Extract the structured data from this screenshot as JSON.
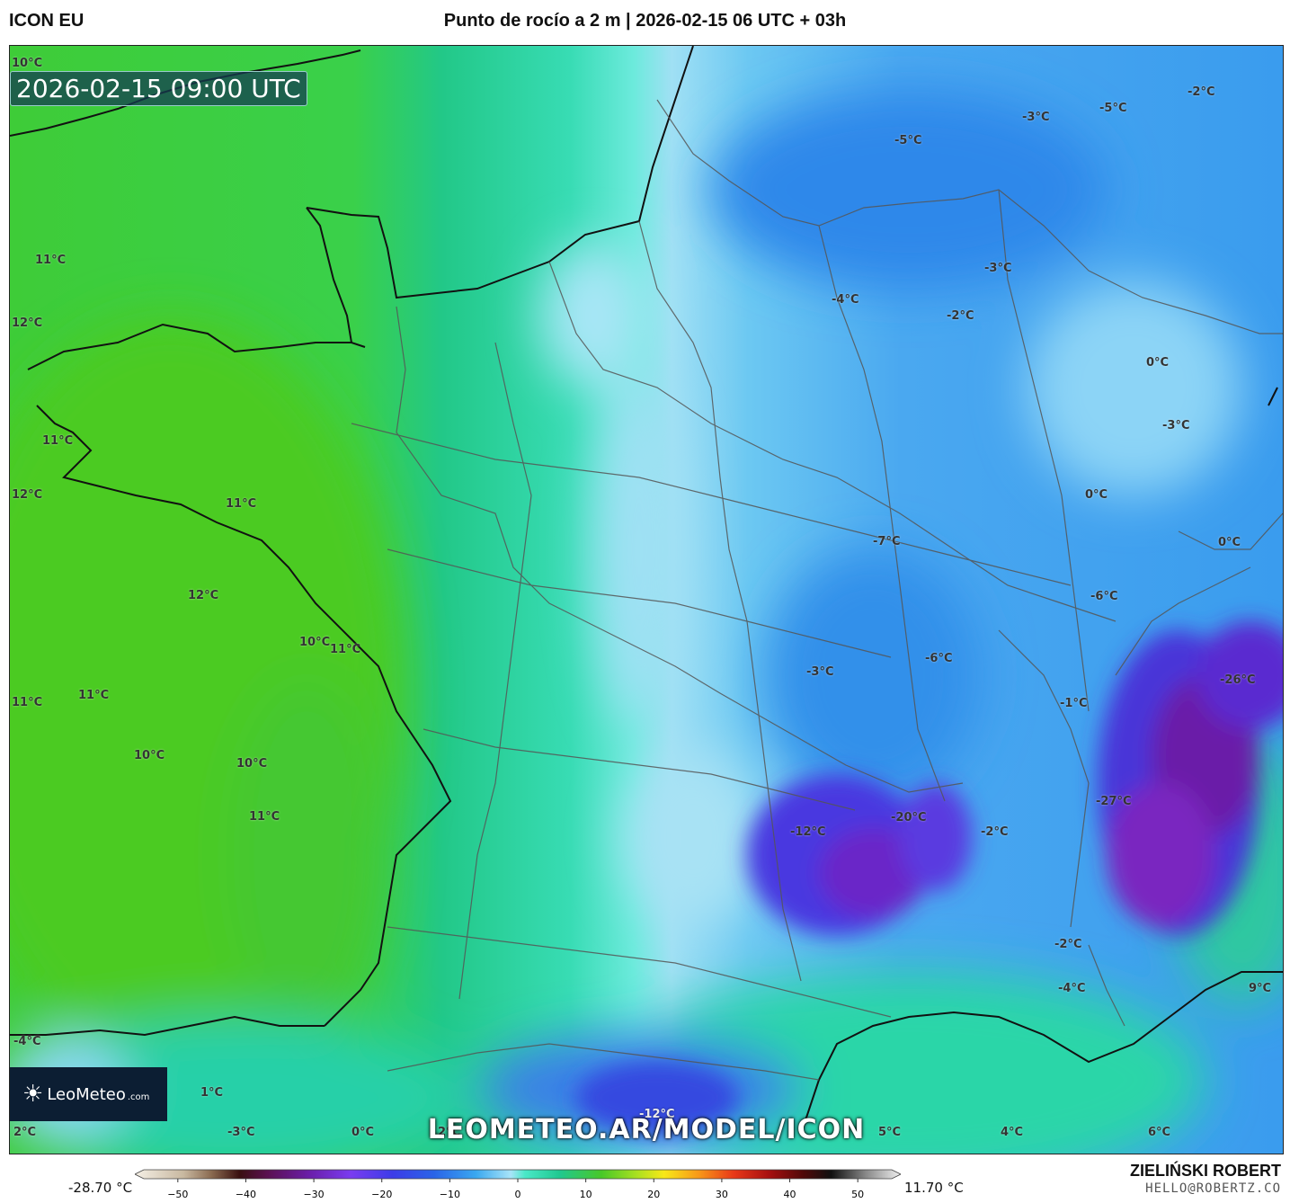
{
  "header": {
    "model": "ICON EU",
    "title": "Punto de rocío a 2 m | 2026-02-15 06 UTC + 03h"
  },
  "map": {
    "valid_time": "2026-02-15 09:00 UTC",
    "watermark": "LEOMETEO.AR/MODEL/ICON",
    "logo": {
      "name": "LeoMeteo",
      "suffix": ".com"
    },
    "labels": [
      {
        "text": "10°C",
        "tone": "dark"
      },
      {
        "text": "11°C",
        "tone": "dark"
      },
      {
        "text": "12°C",
        "tone": "dark"
      },
      {
        "text": "11°C",
        "tone": "dark"
      },
      {
        "text": "12°C",
        "tone": "dark"
      },
      {
        "text": "11°C",
        "tone": "dark"
      },
      {
        "text": "12°C",
        "tone": "dark"
      },
      {
        "text": "10°C",
        "tone": "dark"
      },
      {
        "text": "11°C",
        "tone": "dark"
      },
      {
        "text": "11°C",
        "tone": "dark"
      },
      {
        "text": "11°C",
        "tone": "dark"
      },
      {
        "text": "10°C",
        "tone": "dark"
      },
      {
        "text": "10°C",
        "tone": "dark"
      },
      {
        "text": "11°C",
        "tone": "dark"
      },
      {
        "text": "-2°C",
        "tone": "dark"
      },
      {
        "text": "-5°C",
        "tone": "dark"
      },
      {
        "text": "-3°C",
        "tone": "dark"
      },
      {
        "text": "-5°C",
        "tone": "dark"
      },
      {
        "text": "-3°C",
        "tone": "dark"
      },
      {
        "text": "-4°C",
        "tone": "dark"
      },
      {
        "text": "-2°C",
        "tone": "dark"
      },
      {
        "text": "0°C",
        "tone": "dark"
      },
      {
        "text": "-3°C",
        "tone": "dark"
      },
      {
        "text": "0°C",
        "tone": "dark"
      },
      {
        "text": "-7°C",
        "tone": "dark"
      },
      {
        "text": "0°C",
        "tone": "dark"
      },
      {
        "text": "-6°C",
        "tone": "dark"
      },
      {
        "text": "-3°C",
        "tone": "dark"
      },
      {
        "text": "-6°C",
        "tone": "dark"
      },
      {
        "text": "-1°C",
        "tone": "dark"
      },
      {
        "text": "-26°C",
        "tone": "dark"
      },
      {
        "text": "-27°C",
        "tone": "dark"
      },
      {
        "text": "-12°C",
        "tone": "dark"
      },
      {
        "text": "-20°C",
        "tone": "dark"
      },
      {
        "text": "-2°C",
        "tone": "dark"
      },
      {
        "text": "-2°C",
        "tone": "dark"
      },
      {
        "text": "-4°C",
        "tone": "dark"
      },
      {
        "text": "9°C",
        "tone": "dark"
      },
      {
        "text": "-4°C",
        "tone": "dark"
      },
      {
        "text": "1°C",
        "tone": "dark"
      },
      {
        "text": "2°C",
        "tone": "dark"
      },
      {
        "text": "-3°C",
        "tone": "dark"
      },
      {
        "text": "0°C",
        "tone": "dark"
      },
      {
        "text": "2°C",
        "tone": "dark"
      },
      {
        "text": "-12°C",
        "tone": "light"
      },
      {
        "text": "5°C",
        "tone": "dark"
      },
      {
        "text": "4°C",
        "tone": "dark"
      },
      {
        "text": "6°C",
        "tone": "dark"
      }
    ]
  },
  "legend": {
    "min_label": "-28.70 °C",
    "max_label": "11.70 °C",
    "ticks": [
      "−50",
      "−40",
      "−30",
      "−20",
      "−10",
      "0",
      "10",
      "20",
      "30",
      "40",
      "50"
    ],
    "tick_values": [
      -50,
      -40,
      -30,
      -20,
      -10,
      0,
      10,
      20,
      30,
      40,
      50
    ],
    "range": [
      -55,
      55
    ],
    "stops": [
      {
        "v": -55,
        "c": "#f5f0e6"
      },
      {
        "v": -48,
        "c": "#c8b8a0"
      },
      {
        "v": -44,
        "c": "#8a6a50"
      },
      {
        "v": -40,
        "c": "#3a1010"
      },
      {
        "v": -36,
        "c": "#5a1050"
      },
      {
        "v": -30,
        "c": "#6a1ea8"
      },
      {
        "v": -24,
        "c": "#7a3cf0"
      },
      {
        "v": -18,
        "c": "#3c3ce8"
      },
      {
        "v": -12,
        "c": "#2a64e8"
      },
      {
        "v": -6,
        "c": "#3aa8f0"
      },
      {
        "v": -1,
        "c": "#a8e4f8"
      },
      {
        "v": 1,
        "c": "#4ae8c8"
      },
      {
        "v": 6,
        "c": "#20c890"
      },
      {
        "v": 12,
        "c": "#48c828"
      },
      {
        "v": 17,
        "c": "#a8e020"
      },
      {
        "v": 21,
        "c": "#f8e818"
      },
      {
        "v": 26,
        "c": "#f89818"
      },
      {
        "v": 31,
        "c": "#e83818"
      },
      {
        "v": 36,
        "c": "#a81010"
      },
      {
        "v": 41,
        "c": "#500808"
      },
      {
        "v": 45,
        "c": "#101010"
      },
      {
        "v": 50,
        "c": "#888888"
      },
      {
        "v": 55,
        "c": "#f0f0f0"
      }
    ]
  },
  "author": {
    "name": "ZIELIŃSKI ROBERT",
    "email": "HELLO@ROBERTZ.CO"
  }
}
